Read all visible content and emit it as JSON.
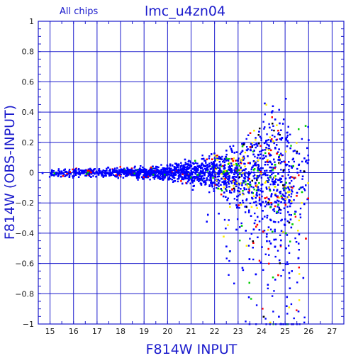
{
  "chart_data": {
    "type": "scatter",
    "subtitle": "All chips",
    "title": "lmc_u4zn04",
    "xlabel": "F814W INPUT",
    "ylabel": "F814W (OBS-INPUT)",
    "xlim": [
      14.5,
      27.5
    ],
    "ylim": [
      -1,
      1
    ],
    "xticks": [
      "15",
      "16",
      "17",
      "18",
      "19",
      "20",
      "21",
      "22",
      "23",
      "24",
      "25",
      "26",
      "27"
    ],
    "yticks": [
      "1",
      "0.8",
      "0.6",
      "0.4",
      "0.2",
      "0",
      "−0.2",
      "−0.4",
      "−0.6",
      "−0.8",
      "−1"
    ],
    "grid": true,
    "colors": {
      "axes": "#1a1acc",
      "grid": "#1a1acc",
      "points_main": "#0000ff",
      "points_yellow": "#ffee00",
      "points_red": "#ff0000",
      "points_green": "#00cc00",
      "points_black": "#000000"
    },
    "series_profile": {
      "x_range": [
        14.6,
        26.0
      ],
      "scatter_envelope": [
        {
          "x": 15.0,
          "spread": 0.03
        },
        {
          "x": 18.0,
          "spread": 0.03
        },
        {
          "x": 20.0,
          "spread": 0.05
        },
        {
          "x": 22.0,
          "spread": 0.12
        },
        {
          "x": 23.0,
          "spread": 0.2
        },
        {
          "x": 24.0,
          "spread": 0.35
        },
        {
          "x": 24.5,
          "spread": 0.55
        },
        {
          "x": 25.0,
          "spread": 0.45
        },
        {
          "x": 25.5,
          "spread": 0.3
        }
      ],
      "negative_tail_min": -1.0,
      "positive_max": 0.6
    }
  }
}
